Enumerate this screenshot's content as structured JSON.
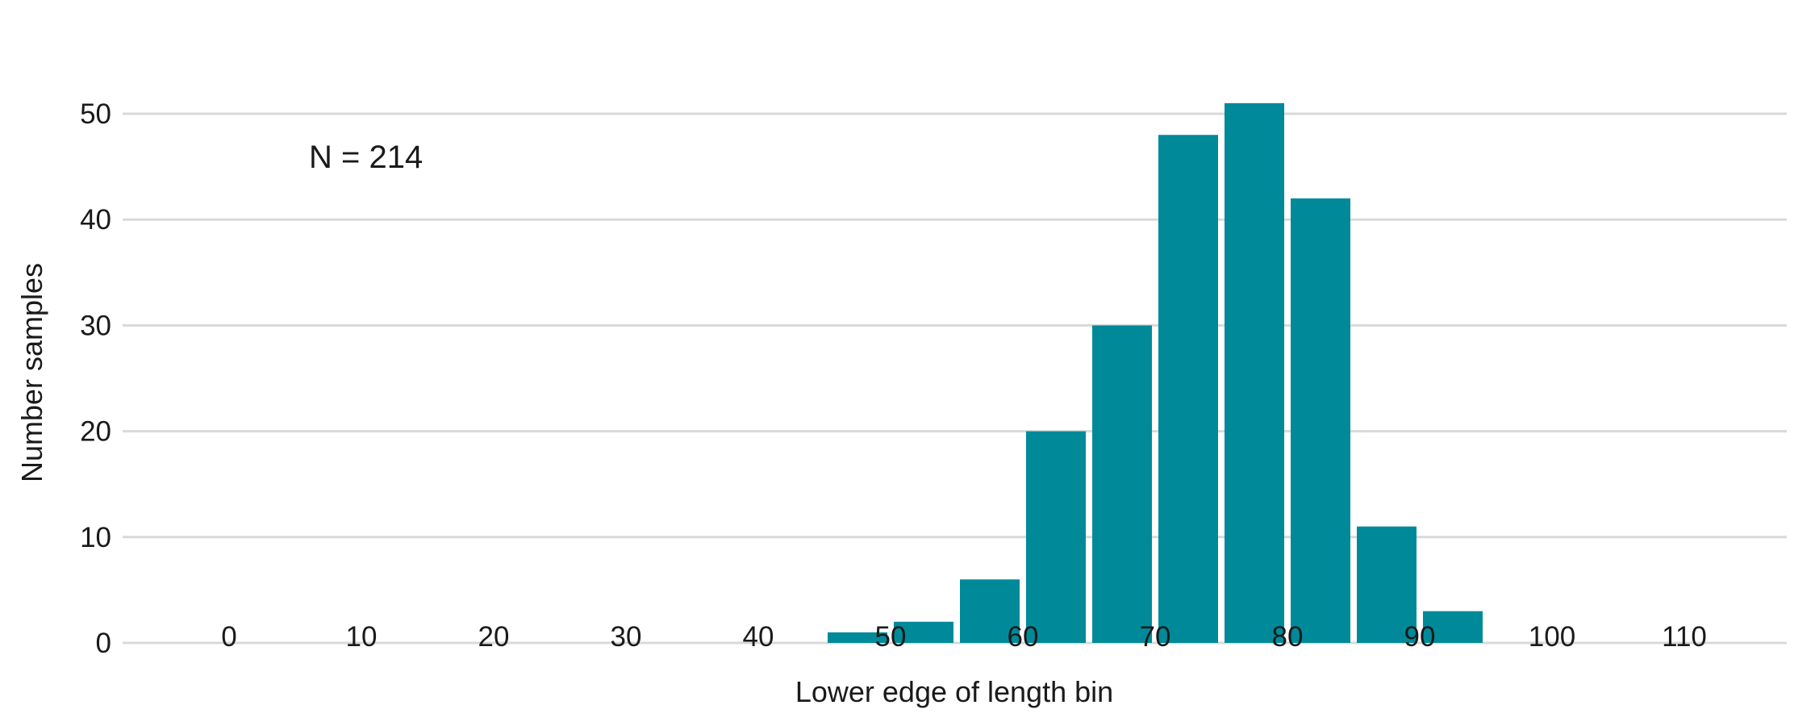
{
  "chart_data": {
    "type": "bar",
    "title": "",
    "xlabel": "Lower edge of length bin",
    "ylabel": "Number samples",
    "annotation": "N = 214",
    "x": [
      45,
      50,
      55,
      60,
      65,
      70,
      75,
      80,
      85,
      90
    ],
    "values": [
      1,
      2,
      6,
      20,
      30,
      48,
      51,
      42,
      11,
      3
    ],
    "bin_width": 5,
    "xlim": [
      -8,
      118
    ],
    "ylim": [
      0,
      55
    ],
    "xticks": [
      0,
      10,
      20,
      30,
      40,
      50,
      60,
      70,
      80,
      90,
      100,
      110
    ],
    "yticks": [
      0,
      10,
      20,
      30,
      40,
      50
    ],
    "grid": "horizontal",
    "legend": "none",
    "bar_color": "#008a99",
    "grid_color": "#d9d9d9"
  }
}
